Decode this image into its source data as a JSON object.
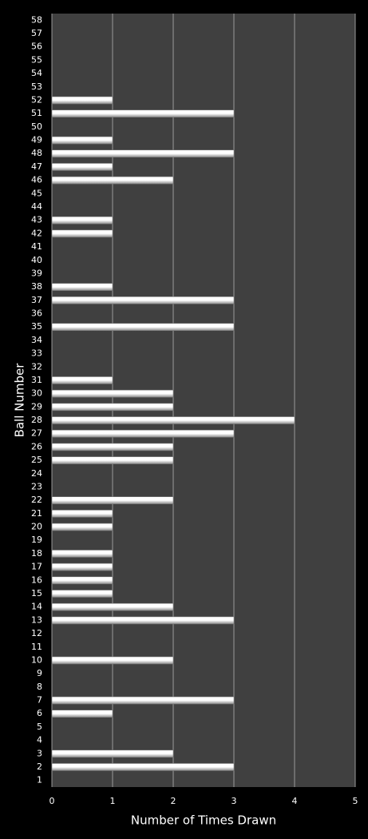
{
  "chart_data": {
    "type": "barh",
    "x_label": "Number of Times Drawn",
    "y_label": "Ball Number",
    "categories": [
      "1",
      "2",
      "3",
      "4",
      "5",
      "6",
      "7",
      "8",
      "9",
      "10",
      "11",
      "12",
      "13",
      "14",
      "15",
      "16",
      "17",
      "18",
      "19",
      "20",
      "21",
      "22",
      "23",
      "24",
      "25",
      "26",
      "27",
      "28",
      "29",
      "30",
      "31",
      "32",
      "33",
      "34",
      "35",
      "36",
      "37",
      "38",
      "39",
      "40",
      "41",
      "42",
      "43",
      "44",
      "45",
      "46",
      "47",
      "48",
      "49",
      "50",
      "51",
      "52",
      "53",
      "54",
      "55",
      "56",
      "57",
      "58"
    ],
    "values": [
      0,
      3,
      2,
      0,
      0,
      1,
      3,
      0,
      0,
      2,
      0,
      0,
      3,
      2,
      1,
      1,
      1,
      1,
      0,
      1,
      1,
      2,
      0,
      0,
      2,
      2,
      3,
      4,
      2,
      2,
      1,
      0,
      0,
      0,
      3,
      0,
      3,
      1,
      0,
      0,
      0,
      1,
      1,
      0,
      0,
      2,
      1,
      3,
      1,
      0,
      3,
      1,
      0,
      0,
      0,
      0,
      0,
      0
    ],
    "color": "#ffffff",
    "xlim": [
      0,
      5
    ],
    "xticks": [
      0,
      1,
      2,
      3,
      4,
      5
    ],
    "grid": true
  }
}
